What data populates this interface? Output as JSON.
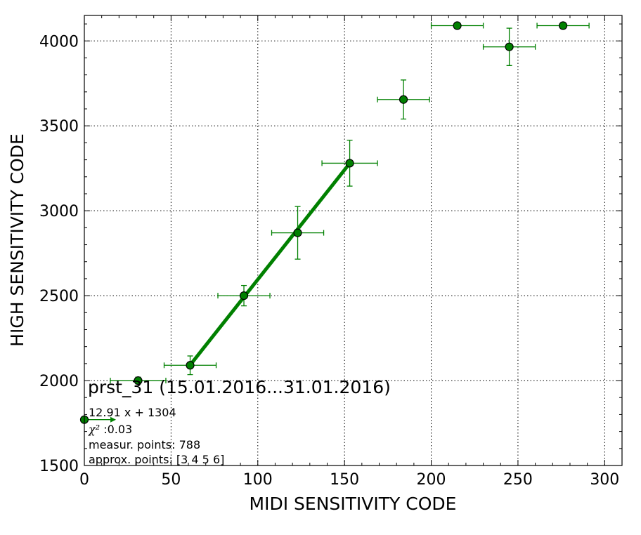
{
  "chart_data": {
    "type": "scatter",
    "title": "prst_31 (15.01.2016...31.01.2016)",
    "xlabel": "MIDI SENSITIVITY CODE",
    "ylabel": "HIGH SENSITIVITY CODE",
    "xlim": [
      0,
      310
    ],
    "ylim": [
      1500,
      4150
    ],
    "xticks": [
      0,
      50,
      100,
      150,
      200,
      250,
      300
    ],
    "yticks": [
      1500,
      2000,
      2500,
      3000,
      3500,
      4000
    ],
    "grid": true,
    "color": "#008000",
    "points": [
      {
        "x": 0,
        "y": 1770,
        "xerr": 15,
        "yerr": 0
      },
      {
        "x": 31,
        "y": 2000,
        "xerr": 16,
        "yerr": 20
      },
      {
        "x": 61,
        "y": 2090,
        "xerr": 15,
        "yerr": 55
      },
      {
        "x": 92,
        "y": 2500,
        "xerr": 15,
        "yerr": 60
      },
      {
        "x": 123,
        "y": 2870,
        "xerr": 15,
        "yerr": 155
      },
      {
        "x": 153,
        "y": 3280,
        "xerr": 16,
        "yerr": 135
      },
      {
        "x": 184,
        "y": 3655,
        "xerr": 15,
        "yerr": 115
      },
      {
        "x": 215,
        "y": 4090,
        "xerr": 15,
        "yerr": 0
      },
      {
        "x": 245,
        "y": 3965,
        "xerr": 15,
        "yerr": 110
      },
      {
        "x": 276,
        "y": 4090,
        "xerr": 15,
        "yerr": 0
      }
    ],
    "fit_line": {
      "x": [
        61,
        153
      ],
      "slope": 12.91,
      "intercept": 1304
    },
    "annotations": {
      "fit": "12.91 x + 1304",
      "chi2_symbol": "χ²",
      "chi2_value": " :0.03",
      "measur_points": "measur. points: 788",
      "approx_points": "approx. points: [3 4 5 6]"
    }
  }
}
